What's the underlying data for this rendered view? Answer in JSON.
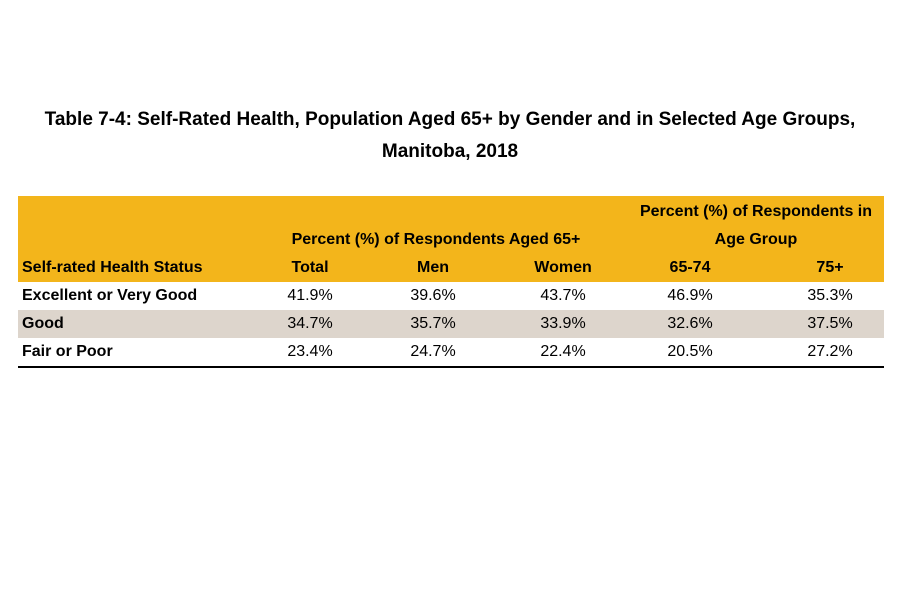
{
  "title": "Table 7-4: Self-Rated Health, Population Aged 65+ by Gender and in Selected Age Groups, Manitoba, 2018",
  "table": {
    "group_headers": [
      "Percent (%) of Respondents Aged 65+",
      "Percent (%) of Respondents in Age Group"
    ],
    "columns": [
      "Self-rated Health Status",
      "Total",
      "Men",
      "Women",
      "65-74",
      "75+"
    ],
    "rows": [
      [
        "Excellent or Very Good",
        "41.9%",
        "39.6%",
        "43.7%",
        "46.9%",
        "35.3%"
      ],
      [
        "Good",
        "34.7%",
        "35.7%",
        "33.9%",
        "32.6%",
        "37.5%"
      ],
      [
        "Fair or Poor",
        "23.4%",
        "24.7%",
        "22.4%",
        "20.5%",
        "27.2%"
      ]
    ]
  }
}
